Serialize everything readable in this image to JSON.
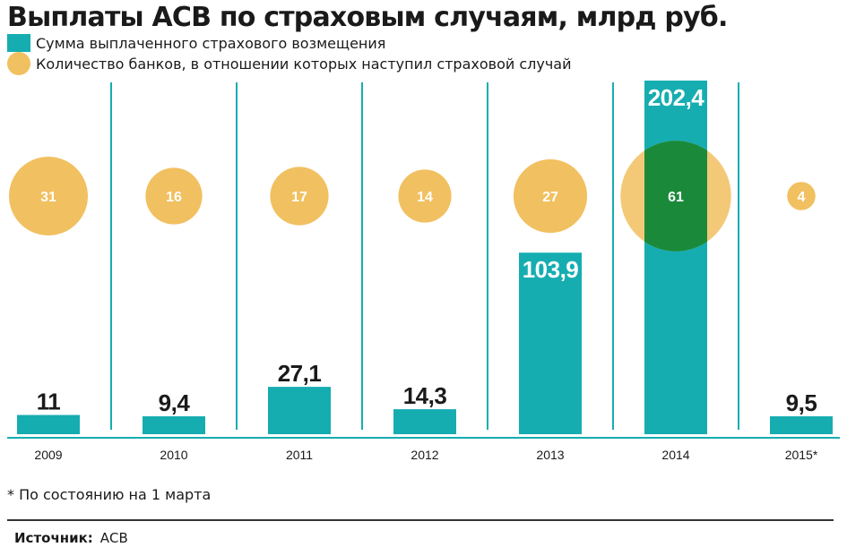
{
  "title": "Выплаты АСВ по страховым случаям, млрд руб.",
  "legend": {
    "bars": "Сумма выплаченного страхового возмещения",
    "circles": "Количество банков, в отношении которых наступил страховой случай"
  },
  "colors": {
    "bar": "#16adb1",
    "circle": "#f1c060",
    "overlap": "#1a8a3a",
    "divider": "#16adb1"
  },
  "chart_data": {
    "type": "bar",
    "categories": [
      "2009",
      "2010",
      "2011",
      "2012",
      "2013",
      "2014",
      "2015*"
    ],
    "series": [
      {
        "name": "Сумма выплаченного страхового возмещения",
        "values": [
          11,
          9.4,
          27.1,
          14.3,
          103.9,
          202.4,
          9.5
        ],
        "labels": [
          "11",
          "9,4",
          "27,1",
          "14,3",
          "103,9",
          "202,4",
          "9,5"
        ]
      },
      {
        "name": "Количество банков, в отношении которых наступил страховой случай",
        "values": [
          31,
          16,
          17,
          14,
          27,
          61,
          4
        ],
        "labels": [
          "31",
          "16",
          "17",
          "14",
          "27",
          "61",
          "4"
        ]
      }
    ],
    "xlabel": "",
    "ylabel": ""
  },
  "footnote": "* По состоянию на 1 марта",
  "source": {
    "label": "Источник:",
    "value": "АСВ"
  }
}
